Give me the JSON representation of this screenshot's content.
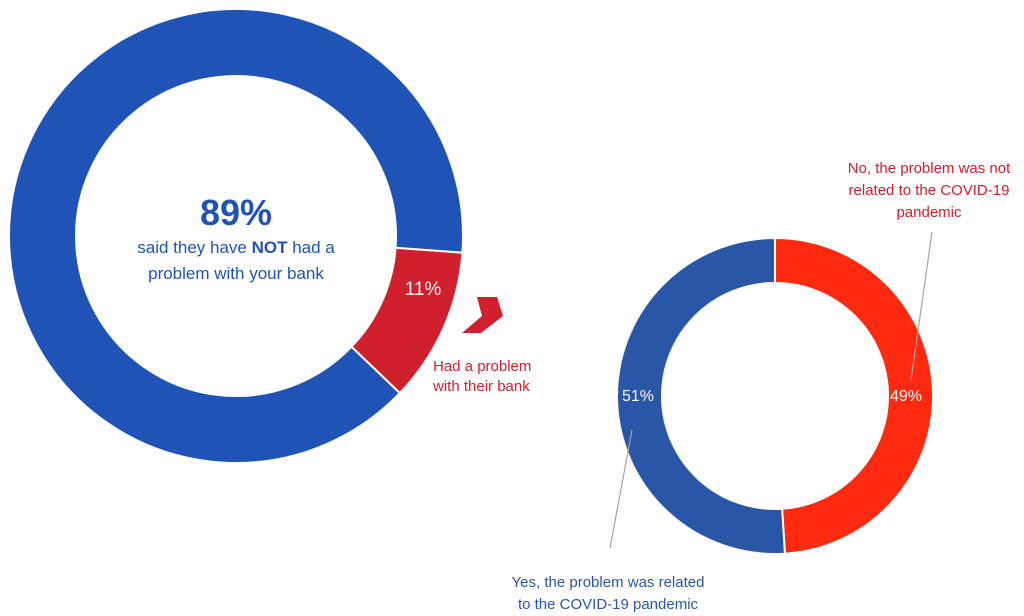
{
  "chart_data": [
    {
      "type": "donut",
      "center_text": {
        "big": "89%",
        "line1_pre": "said they have ",
        "line1_bold": "NOT",
        "line1_post": " had a",
        "line2": "problem with your bank"
      },
      "slices": [
        {
          "label": "said they have NOT had a problem with your bank",
          "value": 89,
          "color": "#1f54b6"
        },
        {
          "label": "Had a problem with their bank",
          "value": 11,
          "color": "#d0202e"
        }
      ],
      "data_labels": {
        "slice_2": "11%"
      },
      "callout": {
        "line1": "Had a problem",
        "line2": "with their bank"
      }
    },
    {
      "type": "donut",
      "slices": [
        {
          "label": "No, the problem was not related to the COVID-19 pandemic",
          "value": 49,
          "color": "#ff2a10"
        },
        {
          "label": "Yes, the problem was related to the COVID-19 pandemic",
          "value": 51,
          "color": "#2a56a8"
        }
      ],
      "data_labels": {
        "no": "49%",
        "yes": "51%"
      },
      "annotations": {
        "no_lines": [
          "No, the problem was not",
          "related to the COVID-19",
          "pandemic"
        ],
        "yes_lines": [
          "Yes, the problem was related",
          "to the COVID-19 pandemic"
        ]
      }
    }
  ],
  "colors": {
    "blue_text": "#1f54b6",
    "red_text": "#d0202e",
    "arrow": "#d0202e",
    "leader": "#a6a6a6"
  }
}
